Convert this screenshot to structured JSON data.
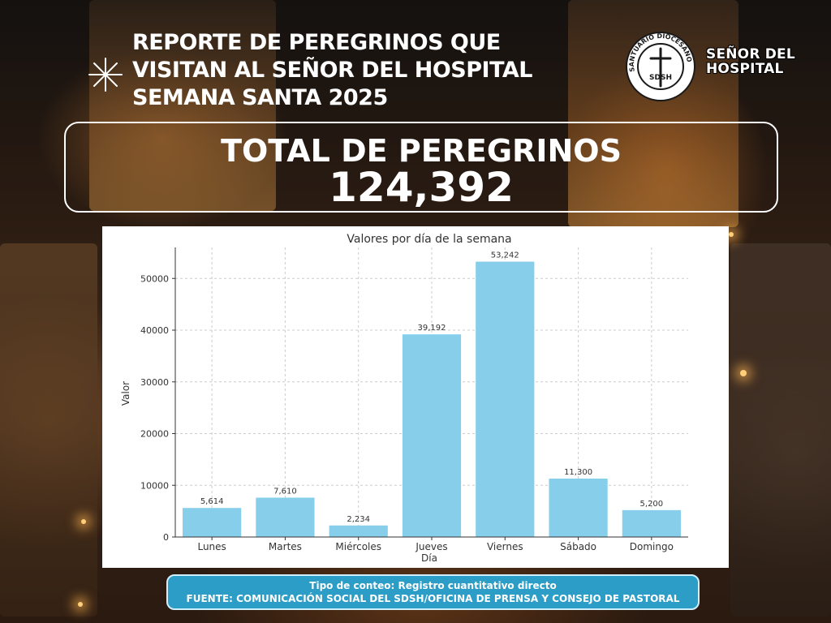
{
  "header": {
    "title_lines": [
      "REPORTE DE  PEREGRINOS QUE",
      "VISITAN AL SEÑOR DEL HOSPITAL",
      "SEMANA SANTA 2025"
    ]
  },
  "logo": {
    "ring_text": "SANTUARIO DIOCESANO",
    "initials": "SDSH",
    "name_lines": [
      "SEÑOR DEL",
      "HOSPITAL"
    ]
  },
  "total": {
    "label": "TOTAL DE PEREGRINOS",
    "value": "124,392"
  },
  "chart_data": {
    "type": "bar",
    "title": "Valores por día de la semana",
    "xlabel": "Día",
    "ylabel": "Valor",
    "categories": [
      "Lunes",
      "Martes",
      "Miércoles",
      "Jueves",
      "Viernes",
      "Sábado",
      "Domingo"
    ],
    "values": [
      5614,
      7610,
      2234,
      39192,
      53242,
      11300,
      5200
    ],
    "data_labels": [
      "5,614",
      "7,610",
      "2,234",
      "39,192",
      "53,242",
      "11,300",
      "5,200"
    ],
    "yticks": [
      0,
      10000,
      20000,
      30000,
      40000,
      50000
    ],
    "ylim": [
      0,
      56000
    ],
    "grid": true,
    "bar_color": "#87ceeb"
  },
  "footer": {
    "line1": "Tipo de conteo: Registro cuantitativo directo",
    "line2": "FUENTE: COMUNICACIÓN SOCIAL DEL SDSH/OFICINA DE PRENSA Y CONSEJO DE PASTORAL"
  },
  "colors": {
    "footer_bg": "#2b9dc7",
    "text": "#ffffff"
  }
}
